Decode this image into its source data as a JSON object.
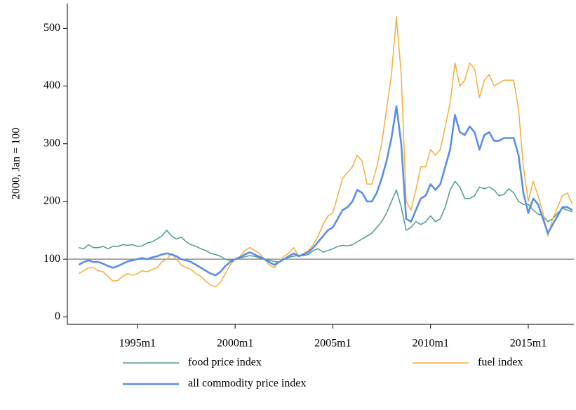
{
  "chart_data": {
    "type": "line",
    "ylabel": "2000, Jan = 100",
    "x": [
      "1992m1",
      "1992m4",
      "1992m7",
      "1992m10",
      "1993m1",
      "1993m4",
      "1993m7",
      "1993m10",
      "1994m1",
      "1994m4",
      "1994m7",
      "1994m10",
      "1995m1",
      "1995m4",
      "1995m7",
      "1995m10",
      "1996m1",
      "1996m4",
      "1996m7",
      "1996m10",
      "1997m1",
      "1997m4",
      "1997m7",
      "1997m10",
      "1998m1",
      "1998m4",
      "1998m7",
      "1998m10",
      "1999m1",
      "1999m4",
      "1999m7",
      "1999m10",
      "2000m1",
      "2000m4",
      "2000m7",
      "2000m10",
      "2001m1",
      "2001m4",
      "2001m7",
      "2001m10",
      "2002m1",
      "2002m4",
      "2002m7",
      "2002m10",
      "2003m1",
      "2003m4",
      "2003m7",
      "2003m10",
      "2004m1",
      "2004m4",
      "2004m7",
      "2004m10",
      "2005m1",
      "2005m4",
      "2005m7",
      "2005m10",
      "2006m1",
      "2006m4",
      "2006m7",
      "2006m10",
      "2007m1",
      "2007m4",
      "2007m7",
      "2007m10",
      "2008m1",
      "2008m4",
      "2008m7",
      "2008m10",
      "2009m1",
      "2009m4",
      "2009m7",
      "2009m10",
      "2010m1",
      "2010m4",
      "2010m7",
      "2010m10",
      "2011m1",
      "2011m4",
      "2011m7",
      "2011m10",
      "2012m1",
      "2012m4",
      "2012m7",
      "2012m10",
      "2013m1",
      "2013m4",
      "2013m7",
      "2013m10",
      "2014m1",
      "2014m4",
      "2014m7",
      "2014m10",
      "2015m1",
      "2015m4",
      "2015m7",
      "2015m10",
      "2016m1",
      "2016m4",
      "2016m7",
      "2016m10",
      "2017m1",
      "2017m4"
    ],
    "series": [
      {
        "name": "food price index",
        "color": "#4f9a8f",
        "width": 1.5,
        "values": [
          120,
          118,
          125,
          120,
          120,
          122,
          118,
          122,
          122,
          125,
          124,
          125,
          122,
          123,
          128,
          130,
          135,
          140,
          150,
          140,
          135,
          138,
          130,
          125,
          122,
          118,
          115,
          110,
          108,
          105,
          100,
          98,
          100,
          102,
          104,
          106,
          105,
          102,
          100,
          98,
          96,
          95,
          100,
          103,
          105,
          107,
          106,
          108,
          115,
          118,
          112,
          115,
          118,
          122,
          124,
          123,
          125,
          130,
          135,
          140,
          145,
          155,
          165,
          180,
          200,
          220,
          190,
          150,
          155,
          165,
          160,
          165,
          175,
          165,
          170,
          190,
          220,
          235,
          225,
          205,
          205,
          210,
          225,
          222,
          225,
          220,
          210,
          212,
          222,
          215,
          200,
          195,
          195,
          185,
          178,
          175,
          165,
          170,
          180,
          188,
          185,
          182
        ]
      },
      {
        "name": "fuel index",
        "color": "#f5ad3b",
        "width": 1.5,
        "values": [
          75,
          80,
          85,
          85,
          80,
          78,
          70,
          62,
          63,
          70,
          75,
          72,
          75,
          80,
          78,
          82,
          85,
          95,
          100,
          110,
          100,
          90,
          85,
          82,
          75,
          70,
          62,
          55,
          52,
          60,
          75,
          90,
          100,
          105,
          115,
          120,
          115,
          110,
          100,
          90,
          85,
          95,
          105,
          110,
          120,
          105,
          110,
          115,
          125,
          140,
          160,
          175,
          180,
          210,
          240,
          250,
          260,
          280,
          270,
          230,
          230,
          260,
          300,
          360,
          420,
          520,
          420,
          200,
          185,
          220,
          260,
          260,
          290,
          280,
          290,
          330,
          370,
          440,
          400,
          410,
          440,
          430,
          380,
          410,
          420,
          400,
          405,
          410,
          410,
          410,
          360,
          260,
          200,
          235,
          210,
          180,
          140,
          170,
          190,
          210,
          215,
          195
        ]
      },
      {
        "name": "all commodity price index",
        "color": "#5b8ee6",
        "width": 2.6,
        "values": [
          90,
          95,
          98,
          95,
          95,
          92,
          88,
          85,
          88,
          92,
          96,
          98,
          100,
          102,
          100,
          103,
          105,
          108,
          110,
          108,
          105,
          100,
          98,
          95,
          90,
          85,
          80,
          75,
          72,
          78,
          88,
          95,
          100,
          103,
          108,
          112,
          108,
          104,
          100,
          95,
          90,
          95,
          100,
          105,
          110,
          105,
          108,
          112,
          120,
          130,
          140,
          150,
          155,
          170,
          185,
          190,
          200,
          220,
          215,
          200,
          200,
          215,
          240,
          270,
          310,
          365,
          300,
          170,
          165,
          185,
          205,
          210,
          230,
          220,
          230,
          260,
          290,
          350,
          320,
          315,
          330,
          320,
          290,
          315,
          320,
          305,
          305,
          310,
          310,
          310,
          280,
          215,
          180,
          205,
          195,
          170,
          145,
          160,
          175,
          190,
          190,
          185
        ]
      }
    ],
    "xlim": [
      "1991m6",
      "2017m5"
    ],
    "xticks": [
      "1995m1",
      "2000m1",
      "2005m1",
      "2010m1",
      "2015m1"
    ],
    "ylim": [
      -13,
      543
    ],
    "yticks": [
      0,
      100,
      200,
      300,
      400,
      500
    ],
    "refline": 100
  }
}
